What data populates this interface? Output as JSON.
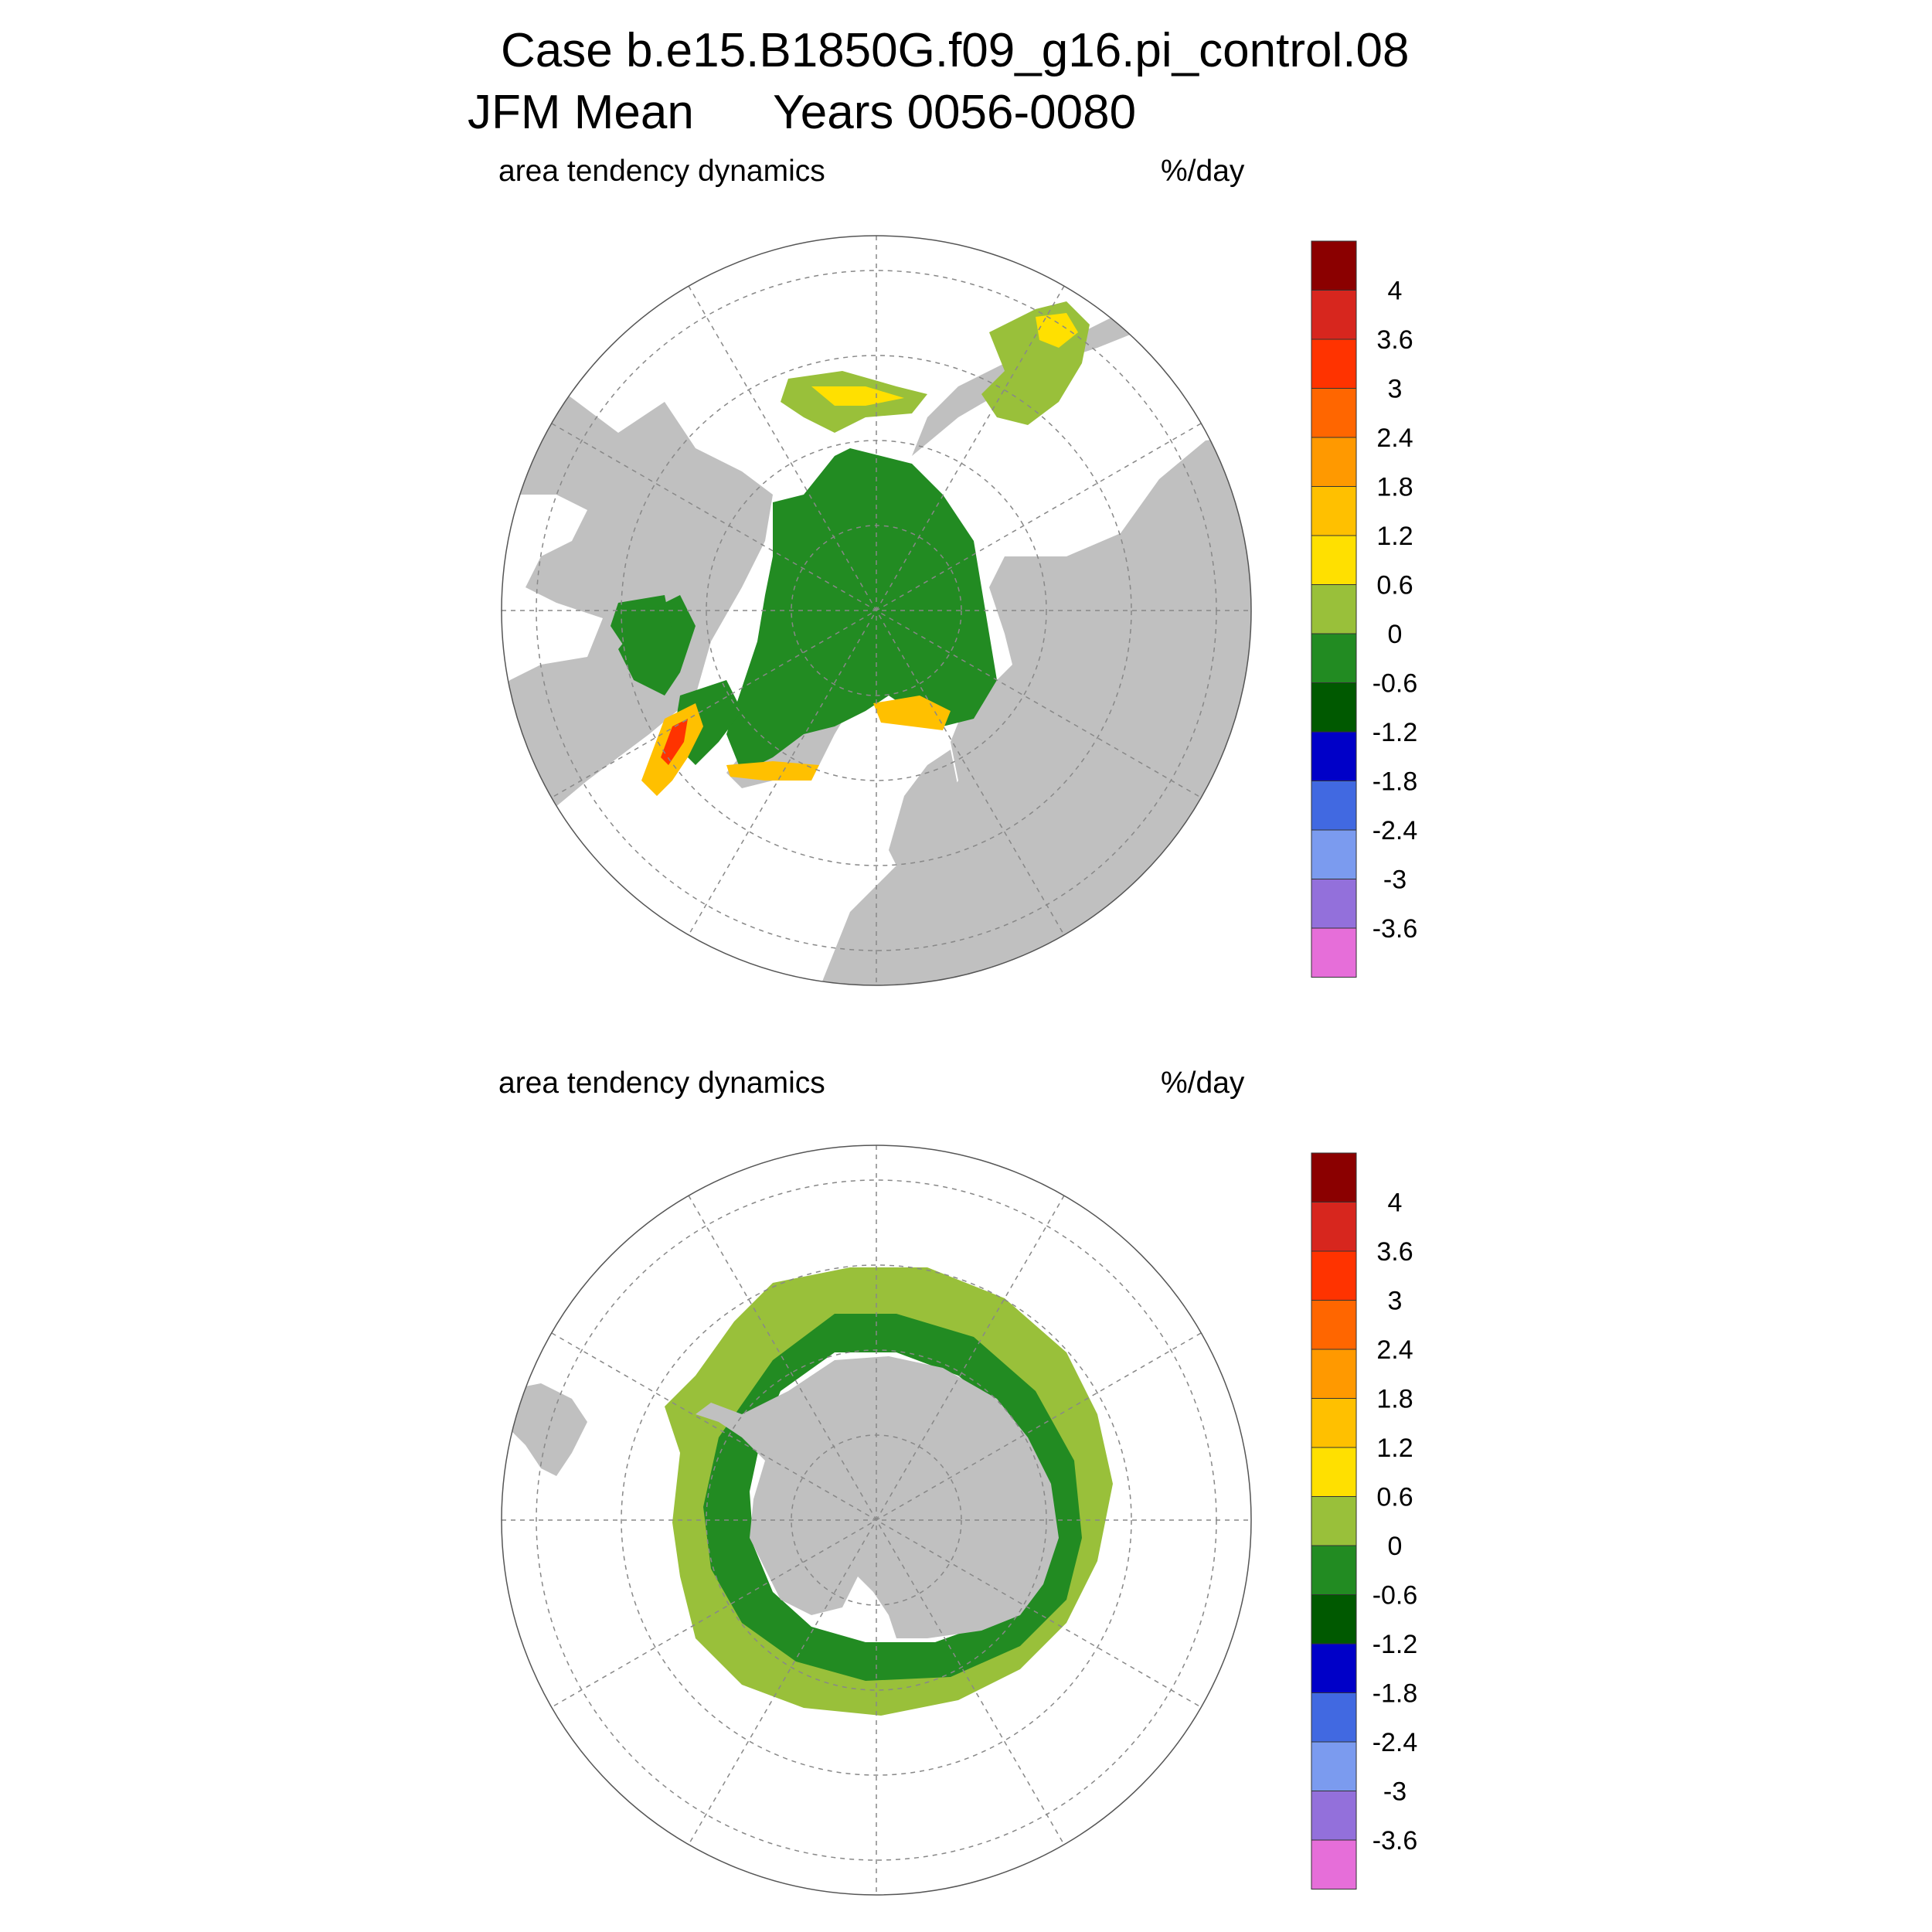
{
  "title": {
    "line1": "Case b.e15.B1850G.f09_g16.pi_control.08",
    "line2_season": "JFM Mean",
    "line2_years": "Years 0056-0080"
  },
  "panels": [
    {
      "name": "north",
      "variable": "area tendency dynamics",
      "units": "%/day"
    },
    {
      "name": "south",
      "variable": "area tendency dynamics",
      "units": "%/day"
    }
  ],
  "colorbar": {
    "labels": [
      "4",
      "3.6",
      "3",
      "2.4",
      "1.8",
      "1.2",
      "0.6",
      "0",
      "-0.6",
      "-1.2",
      "-1.8",
      "-2.4",
      "-3",
      "-3.6"
    ],
    "colors": [
      "#8b0000",
      "#d7261e",
      "#ff3300",
      "#ff6600",
      "#ff9900",
      "#ffc000",
      "#ffe000",
      "#99c03a",
      "#228b22",
      "#005900",
      "#0000c8",
      "#4169e1",
      "#7b9bef",
      "#9370db",
      "#e66ed9"
    ]
  },
  "map_colors": {
    "land": "#c0c0c0",
    "ocean": "#ffffff",
    "grid": "#888888"
  }
}
